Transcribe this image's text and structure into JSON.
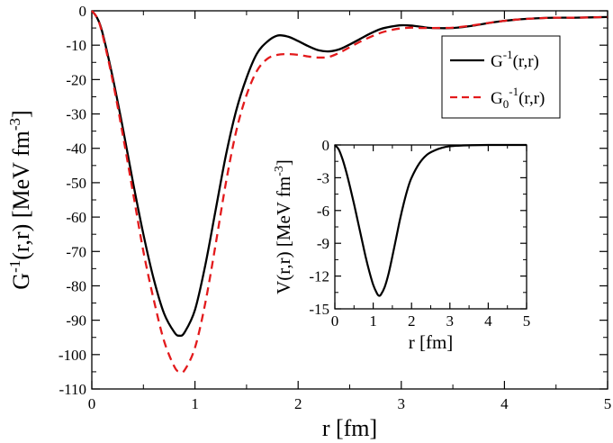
{
  "chart_data": [
    {
      "type": "line",
      "panel": "main",
      "xlabel": "r [fm]",
      "ylabel": "G-1(r,r) [MeV fm-3]",
      "ylabel_parts": {
        "base": "G",
        "sup1": "-1",
        "mid": "(r,r) [MeV fm",
        "sup2": "-3",
        "end": "]"
      },
      "xlim": [
        0,
        5
      ],
      "ylim": [
        -110,
        0
      ],
      "xticks": [
        0,
        1,
        2,
        3,
        4,
        5
      ],
      "yticks": [
        0,
        -10,
        -20,
        -30,
        -40,
        -50,
        -60,
        -70,
        -80,
        -90,
        -100,
        -110
      ],
      "legend_position": "top-right",
      "legend": [
        {
          "key": "G",
          "label_base": "G",
          "label_sub": "",
          "label_sup": "-1",
          "label_rest": "(r,r)"
        },
        {
          "key": "G0",
          "label_base": "G",
          "label_sub": "0",
          "label_sup": "-1",
          "label_rest": "(r,r)"
        }
      ],
      "series": [
        {
          "name": "G-1(r,r)",
          "color": "#000000",
          "dash": "solid",
          "x": [
            0,
            0.05,
            0.1,
            0.2,
            0.3,
            0.4,
            0.5,
            0.6,
            0.7,
            0.8,
            0.85,
            0.9,
            1.0,
            1.1,
            1.2,
            1.3,
            1.4,
            1.5,
            1.6,
            1.7,
            1.8,
            1.9,
            2.0,
            2.1,
            2.2,
            2.3,
            2.4,
            2.5,
            2.6,
            2.7,
            2.8,
            2.9,
            3.0,
            3.1,
            3.2,
            3.3,
            3.5,
            3.7,
            3.9,
            4.1,
            4.3,
            4.5,
            4.7,
            5.0
          ],
          "y": [
            0,
            -2,
            -6,
            -19,
            -34,
            -50,
            -65,
            -78,
            -88,
            -93.5,
            -94.5,
            -93.5,
            -87,
            -74,
            -58,
            -42,
            -29,
            -19.5,
            -12.5,
            -9,
            -7.2,
            -7.5,
            -8.8,
            -10.3,
            -11.5,
            -11.8,
            -11.2,
            -9.8,
            -8.2,
            -6.6,
            -5.3,
            -4.6,
            -4.2,
            -4.3,
            -4.7,
            -5.0,
            -5.0,
            -4.3,
            -3.3,
            -2.6,
            -2.2,
            -2.0,
            -2.0,
            -1.8
          ]
        },
        {
          "name": "G0-1(r,r)",
          "color": "#e31a1c",
          "dash": "dashed",
          "x": [
            0,
            0.05,
            0.1,
            0.2,
            0.3,
            0.4,
            0.5,
            0.6,
            0.7,
            0.8,
            0.85,
            0.9,
            1.0,
            1.1,
            1.2,
            1.3,
            1.4,
            1.5,
            1.6,
            1.7,
            1.8,
            1.9,
            2.0,
            2.1,
            2.2,
            2.3,
            2.4,
            2.5,
            2.6,
            2.7,
            2.8,
            2.9,
            3.0,
            3.1,
            3.2,
            3.3,
            3.5,
            3.7,
            3.9,
            4.1,
            4.3,
            4.5,
            4.7,
            5.0
          ],
          "y": [
            0,
            -2,
            -6.5,
            -20,
            -36,
            -53,
            -70,
            -84,
            -96,
            -103.5,
            -105,
            -104.5,
            -98,
            -85,
            -68,
            -50,
            -35,
            -24.5,
            -17.5,
            -14,
            -12.8,
            -12.6,
            -12.8,
            -13.3,
            -13.6,
            -13.4,
            -12.2,
            -10.6,
            -9.0,
            -7.6,
            -6.4,
            -5.6,
            -5.1,
            -4.9,
            -5.0,
            -5.0,
            -4.9,
            -4.2,
            -3.3,
            -2.6,
            -2.2,
            -2.0,
            -2.0,
            -1.8
          ]
        }
      ]
    },
    {
      "type": "line",
      "panel": "inset",
      "xlabel": "r [fm]",
      "ylabel": "V(r,r) [MeV fm-3]",
      "ylabel_parts": {
        "base": "V(r,r) [MeV fm",
        "sup": "-3",
        "end": "]"
      },
      "xlim": [
        0,
        5
      ],
      "ylim": [
        -15,
        0
      ],
      "xticks": [
        0,
        1,
        2,
        3,
        4,
        5
      ],
      "yticks": [
        0,
        -3,
        -6,
        -9,
        -12,
        -15
      ],
      "series": [
        {
          "name": "V(r,r)",
          "color": "#000000",
          "dash": "solid",
          "x": [
            0,
            0.1,
            0.2,
            0.3,
            0.4,
            0.5,
            0.6,
            0.7,
            0.8,
            0.9,
            1.0,
            1.1,
            1.15,
            1.2,
            1.3,
            1.4,
            1.5,
            1.6,
            1.7,
            1.8,
            1.9,
            2.0,
            2.2,
            2.4,
            2.6,
            2.8,
            3.0,
            3.3,
            3.6,
            4.0,
            4.5,
            5.0
          ],
          "y": [
            0,
            -0.4,
            -1.3,
            -2.5,
            -3.9,
            -5.4,
            -7.0,
            -8.6,
            -10.2,
            -11.6,
            -12.8,
            -13.6,
            -13.8,
            -13.7,
            -13.0,
            -11.8,
            -10.2,
            -8.5,
            -6.8,
            -5.3,
            -4.0,
            -3.0,
            -1.7,
            -0.9,
            -0.5,
            -0.25,
            -0.12,
            -0.05,
            -0.02,
            0,
            0,
            0
          ]
        }
      ]
    }
  ]
}
